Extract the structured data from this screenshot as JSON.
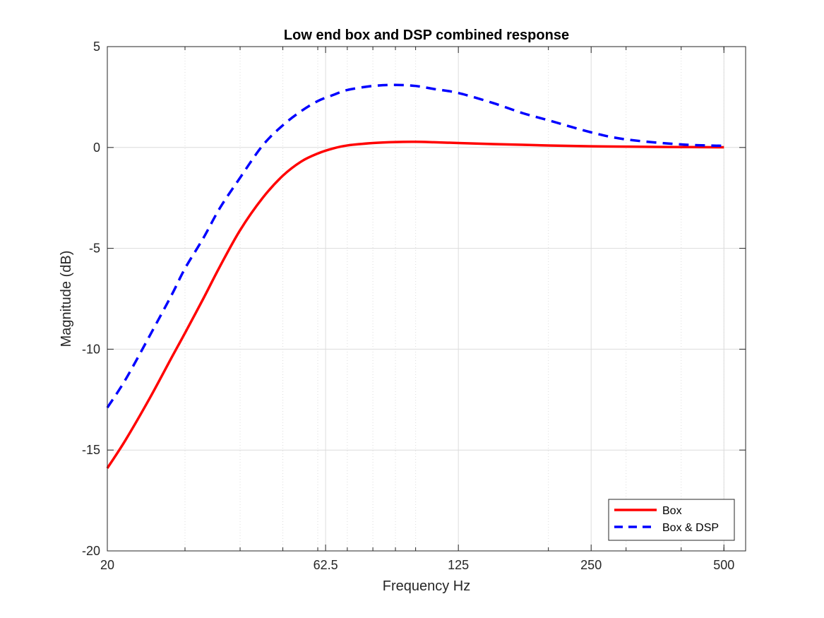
{
  "chart_data": {
    "type": "line",
    "title": "Low end box and DSP combined response",
    "xlabel": "Frequency Hz",
    "ylabel": "Magnitude (dB)",
    "xscale": "log",
    "xlim": [
      20,
      560
    ],
    "ylim": [
      -20,
      5
    ],
    "xticks": [
      20,
      62.5,
      125,
      250,
      500
    ],
    "xtick_labels": [
      "20",
      "62.5",
      "125",
      "250",
      "500"
    ],
    "yticks": [
      5,
      0,
      -5,
      -10,
      -15,
      -20
    ],
    "ytick_labels": [
      "5",
      "0",
      "-5",
      "-10",
      "-15",
      "-20"
    ],
    "grid": true,
    "legend_position": "bottom-right",
    "series": [
      {
        "name": "Box",
        "color": "#ff0000",
        "style": "solid",
        "x": [
          20,
          22,
          25,
          28,
          30,
          33,
          36,
          40,
          45,
          50,
          55,
          60,
          65,
          70,
          80,
          90,
          100,
          110,
          125,
          150,
          200,
          250,
          300,
          400,
          500
        ],
        "y": [
          -15.9,
          -14.5,
          -12.4,
          -10.4,
          -9.2,
          -7.5,
          -5.9,
          -4.1,
          -2.5,
          -1.4,
          -0.7,
          -0.3,
          -0.05,
          0.1,
          0.22,
          0.27,
          0.28,
          0.26,
          0.22,
          0.17,
          0.1,
          0.06,
          0.04,
          0.02,
          0.01
        ]
      },
      {
        "name": "Box & DSP",
        "color": "#0000ff",
        "style": "dashed",
        "x": [
          20,
          22,
          25,
          28,
          30,
          33,
          36,
          40,
          45,
          50,
          55,
          60,
          65,
          70,
          80,
          90,
          100,
          110,
          125,
          150,
          175,
          200,
          250,
          300,
          400,
          500
        ],
        "y": [
          -12.9,
          -11.5,
          -9.3,
          -7.3,
          -6.0,
          -4.5,
          -3.0,
          -1.5,
          0.1,
          1.1,
          1.8,
          2.3,
          2.6,
          2.85,
          3.05,
          3.1,
          3.05,
          2.9,
          2.7,
          2.2,
          1.7,
          1.35,
          0.75,
          0.4,
          0.15,
          0.08
        ]
      }
    ]
  }
}
